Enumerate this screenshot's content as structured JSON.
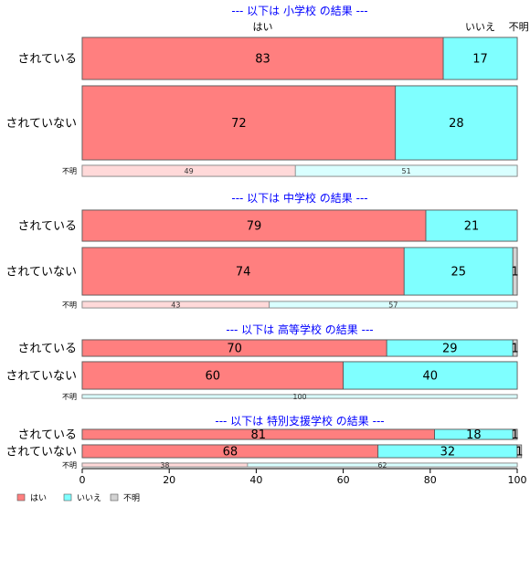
{
  "chart_data": {
    "type": "bar",
    "orientation": "horizontal",
    "stacked": true,
    "xlim": [
      0,
      100
    ],
    "x_ticks": [
      0,
      20,
      40,
      60,
      80,
      100
    ],
    "series_names": [
      "はい",
      "いいえ",
      "不明"
    ],
    "top_labels": [
      "はい",
      "いいえ",
      "不明"
    ],
    "colors": {
      "yes": "#ff7f7f",
      "no": "#7fffff",
      "unknown": "#d3d3d3",
      "yes_light": "#ffd9d9",
      "no_light": "#d9ffff",
      "title": "#0000ff"
    },
    "legend_position": "bottom-left",
    "panels": [
      {
        "title": "--- 以下は 小学校 の結果 ---",
        "rows": [
          {
            "label": "されている",
            "values": [
              83,
              17,
              0
            ]
          },
          {
            "label": "されていない",
            "values": [
              72,
              28,
              0
            ]
          },
          {
            "label": "不明",
            "values": [
              49,
              51,
              0
            ]
          }
        ]
      },
      {
        "title": "--- 以下は 中学校 の結果 ---",
        "rows": [
          {
            "label": "されている",
            "values": [
              79,
              21,
              0
            ]
          },
          {
            "label": "されていない",
            "values": [
              74,
              25,
              1
            ]
          },
          {
            "label": "不明",
            "values": [
              43,
              57,
              0
            ]
          }
        ]
      },
      {
        "title": "--- 以下は 高等学校 の結果 ---",
        "rows": [
          {
            "label": "されている",
            "values": [
              70,
              29,
              1
            ]
          },
          {
            "label": "されていない",
            "values": [
              60,
              40,
              0
            ]
          },
          {
            "label": "不明",
            "values": [
              0,
              100,
              0
            ]
          }
        ]
      },
      {
        "title": "--- 以下は 特別支援学校 の結果 ---",
        "rows": [
          {
            "label": "されている",
            "values": [
              81,
              18,
              1
            ]
          },
          {
            "label": "されていない",
            "values": [
              68,
              32,
              1
            ]
          },
          {
            "label": "不明",
            "values": [
              38,
              62,
              0
            ]
          }
        ]
      }
    ]
  }
}
